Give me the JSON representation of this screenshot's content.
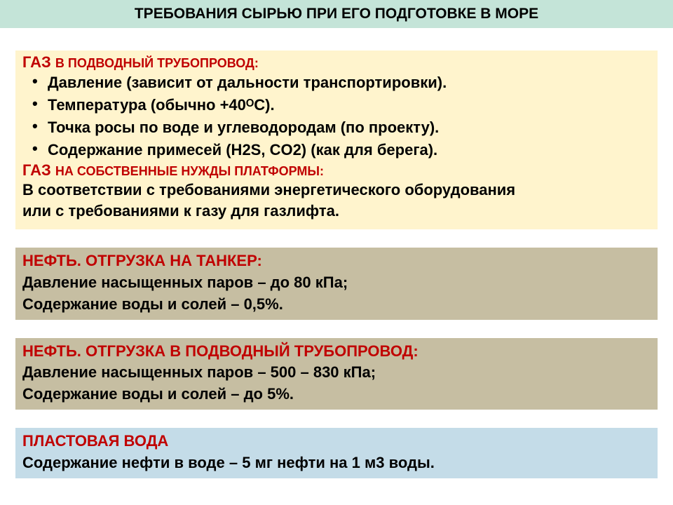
{
  "header": {
    "title": "ТРЕБОВАНИЯ СЫРЬЮ ПРИ ЕГО ПОДГОТОВКЕ В МОРЕ"
  },
  "block1": {
    "title1_big": "ГАЗ",
    "title1_small": "В ПОДВОДНЫЙ ТРУБОПРОВОД:",
    "bullets": [
      "Давление (зависит от дальности транспортировки).",
      "Температура (обычно +40ᴼС).",
      "Точка росы по воде и углеводородам (по проекту).",
      "Содержание примесей (H2S, CO2) (как для берега)."
    ],
    "title2_big": "ГАЗ",
    "title2_small": "НА СОБСТВЕННЫЕ НУЖДЫ ПЛАТФОРМЫ:",
    "para1": "В соответствии с требованиями энергетического оборудования",
    "para2": "или с требованиями к газу для газлифта."
  },
  "block2": {
    "title": "НЕФТЬ. ОТГРУЗКА НА ТАНКЕР:",
    "line1": "Давление насыщенных паров – до 80 кПа;",
    "line2": "Содержание воды и солей – 0,5%."
  },
  "block3": {
    "title": "НЕФТЬ. ОТГРУЗКА В ПОДВОДНЫЙ ТРУБОПРОВОД:",
    "line1": "Давление насыщенных паров – 500 – 830 кПа;",
    "line2": "Содержание воды и солей – до 5%."
  },
  "block4": {
    "title": "ПЛАСТОВАЯ ВОДА",
    "line1": "Содержание нефти в воде – 5 мг нефти на  1 м3 воды."
  }
}
